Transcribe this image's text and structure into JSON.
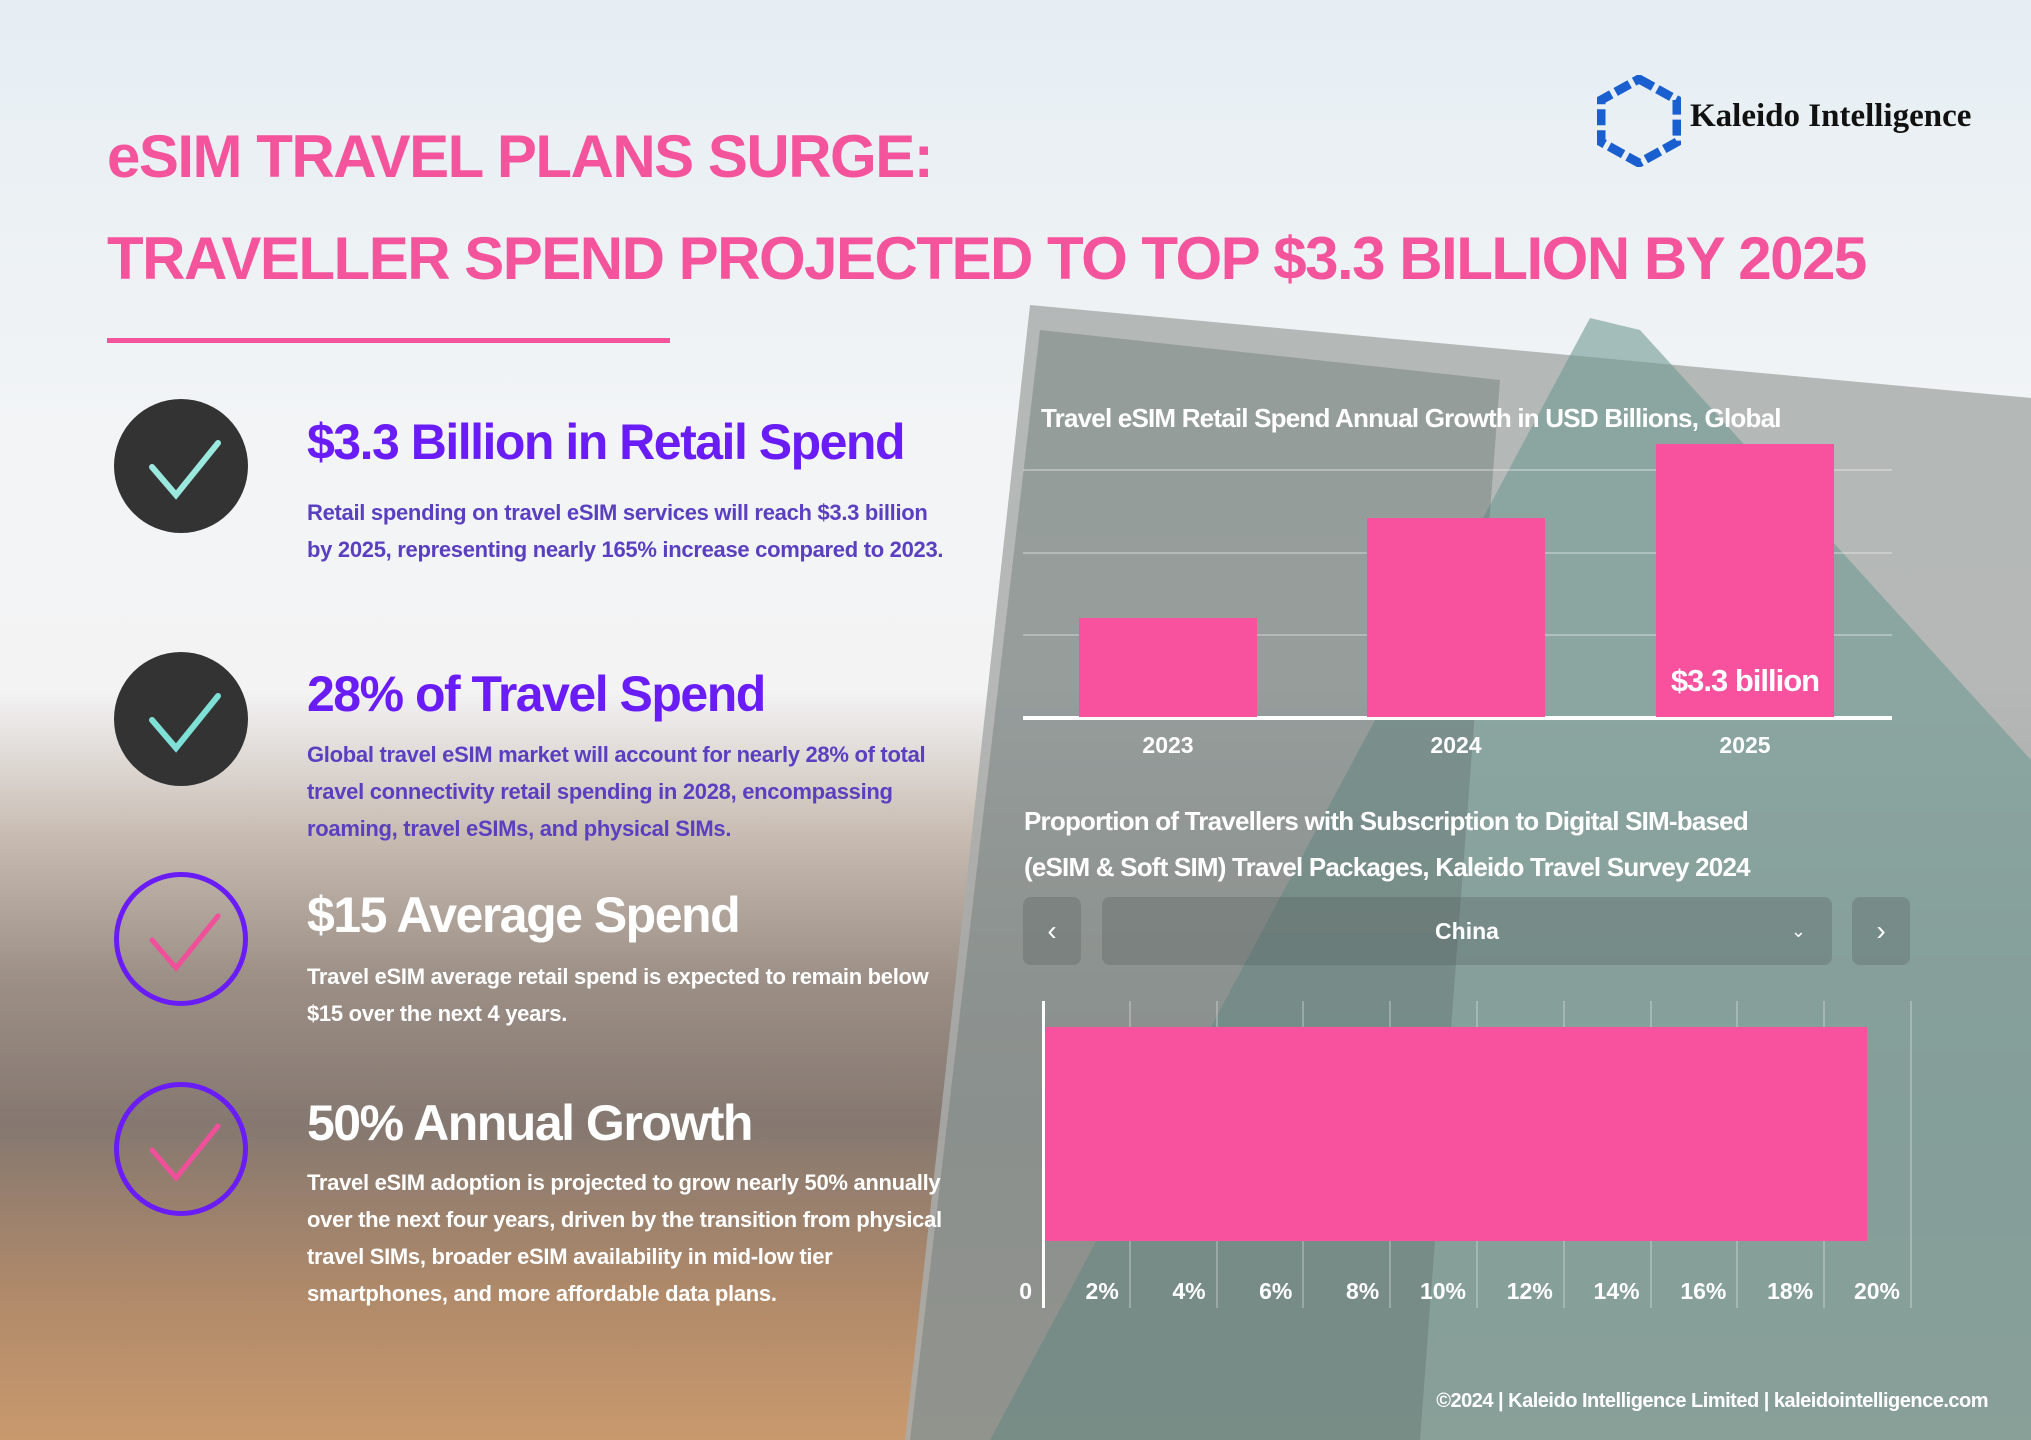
{
  "header": {
    "title_line1": "eSIM TRAVEL PLANS SURGE:",
    "title_line2": "TRAVELLER SPEND PROJECTED TO TOP $3.3 BILLION BY 2025",
    "logo_text": "Kaleido Intelligence",
    "logo_icon": "hexagon-logo-icon",
    "accent_color": "#f4549c"
  },
  "highlights": [
    {
      "icon": "check-icon",
      "heading": "$3.3 Billion in Retail Spend",
      "body": "Retail spending on travel eSIM services will reach $3.3 billion by 2025, representing nearly 165% increase compared to 2023."
    },
    {
      "icon": "check-icon",
      "heading": "28% of Travel Spend",
      "body": "Global travel eSIM market will account for nearly 28% of total travel connectivity retail spending in 2028, encompassing roaming, travel eSIMs, and physical SIMs."
    },
    {
      "icon": "check-icon",
      "heading": "$15 Average Spend",
      "body": "Travel eSIM average retail spend is expected to remain below $15 over the next 4 years."
    },
    {
      "icon": "check-icon",
      "heading": "50% Annual Growth",
      "body": "Travel eSIM adoption is projected to grow nearly 50% annually over the next four years, driven by the transition from physical travel SIMs, broader eSIM availability in mid-low tier smartphones, and more affordable data plans."
    }
  ],
  "selector": {
    "prev_icon": "chevron-left-icon",
    "value": "China",
    "dropdown_icon": "chevron-down-icon",
    "next_icon": "chevron-right-icon"
  },
  "footer": "©2024 | Kaleido Intelligence Limited | kaleidointelligence.com",
  "chart_data": [
    {
      "type": "bar",
      "title": "Travel eSIM Retail Spend Annual Growth in USD Billions, Global",
      "categories": [
        "2023",
        "2024",
        "2025"
      ],
      "values": [
        1.2,
        2.4,
        3.3
      ],
      "data_labels": {
        "2025": "$3.3 billion"
      },
      "ylim": [
        0,
        3.3
      ],
      "grid": true,
      "bar_color": "#f8519e"
    },
    {
      "type": "bar",
      "orientation": "horizontal",
      "title_line1": "Proportion of Travellers with Subscription to Digital SIM-based",
      "title_line2": "(eSIM & Soft SIM) Travel Packages, Kaleido Travel Survey 2024",
      "categories": [
        "China"
      ],
      "values": [
        19
      ],
      "unit": "%",
      "xlim": [
        0,
        20
      ],
      "ticks": [
        "0",
        "2%",
        "4%",
        "6%",
        "8%",
        "10%",
        "12%",
        "14%",
        "16%",
        "18%",
        "20%"
      ],
      "grid": true,
      "bar_color": "#f8519e"
    }
  ]
}
